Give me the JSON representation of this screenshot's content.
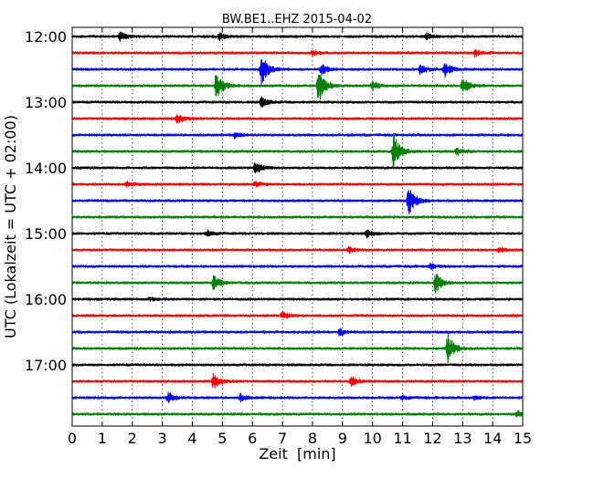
{
  "chart_data": {
    "type": "line",
    "title": "BW.BE1..EHZ 2015-04-02",
    "xlabel": "Zeit  [min]",
    "ylabel": "UTC (Lokalzeit = UTC + 02:00)",
    "xlim": [
      0,
      15
    ],
    "x_ticks": [
      0,
      1,
      2,
      3,
      4,
      5,
      6,
      7,
      8,
      9,
      10,
      11,
      12,
      13,
      14,
      15
    ],
    "y_ticks": [
      {
        "time": "12:00",
        "row": 0
      },
      {
        "time": "13:00",
        "row": 4
      },
      {
        "time": "14:00",
        "row": 8
      },
      {
        "time": "15:00",
        "row": 12
      },
      {
        "time": "16:00",
        "row": 16
      },
      {
        "time": "17:00",
        "row": 20
      }
    ],
    "grid": true,
    "row_interval_minutes": 15,
    "row_colors": [
      "#000000",
      "#ff0000",
      "#0000ff",
      "#008000"
    ],
    "traces": [
      {
        "start": "12:00",
        "events": [
          {
            "t": 1.6,
            "amp": 5
          },
          {
            "t": 4.9,
            "amp": 4
          },
          {
            "t": 11.8,
            "amp": 3
          }
        ]
      },
      {
        "start": "12:15",
        "events": [
          {
            "t": 8.0,
            "amp": 3
          },
          {
            "t": 13.4,
            "amp": 4
          }
        ]
      },
      {
        "start": "12:30",
        "events": [
          {
            "t": 6.3,
            "amp": 18
          },
          {
            "t": 8.3,
            "amp": 6
          },
          {
            "t": 11.6,
            "amp": 6
          },
          {
            "t": 12.4,
            "amp": 9
          }
        ]
      },
      {
        "start": "12:45",
        "events": [
          {
            "t": 4.8,
            "amp": 17
          },
          {
            "t": 8.2,
            "amp": 19
          },
          {
            "t": 10.0,
            "amp": 5
          },
          {
            "t": 13.0,
            "amp": 9
          }
        ]
      },
      {
        "start": "13:00",
        "events": [
          {
            "t": 6.3,
            "amp": 6
          }
        ]
      },
      {
        "start": "13:15",
        "events": [
          {
            "t": 3.5,
            "amp": 5
          }
        ]
      },
      {
        "start": "13:30",
        "events": [
          {
            "t": 5.4,
            "amp": 3
          }
        ]
      },
      {
        "start": "13:45",
        "events": [
          {
            "t": 10.7,
            "amp": 20
          },
          {
            "t": 12.8,
            "amp": 4
          }
        ]
      },
      {
        "start": "14:00",
        "events": [
          {
            "t": 6.1,
            "amp": 7
          }
        ]
      },
      {
        "start": "14:15",
        "events": [
          {
            "t": 1.8,
            "amp": 3
          },
          {
            "t": 6.1,
            "amp": 3
          }
        ]
      },
      {
        "start": "14:30",
        "events": [
          {
            "t": 11.2,
            "amp": 17
          }
        ]
      },
      {
        "start": "14:45",
        "events": []
      },
      {
        "start": "15:00",
        "events": [
          {
            "t": 4.5,
            "amp": 3
          },
          {
            "t": 9.8,
            "amp": 4
          }
        ]
      },
      {
        "start": "15:15",
        "events": [
          {
            "t": 9.2,
            "amp": 3
          },
          {
            "t": 14.2,
            "amp": 3
          }
        ]
      },
      {
        "start": "15:30",
        "events": [
          {
            "t": 11.9,
            "amp": 3
          }
        ]
      },
      {
        "start": "15:45",
        "events": [
          {
            "t": 4.7,
            "amp": 8
          },
          {
            "t": 12.1,
            "amp": 12
          }
        ]
      },
      {
        "start": "16:00",
        "events": [
          {
            "t": 2.6,
            "amp": 2
          }
        ]
      },
      {
        "start": "16:15",
        "events": [
          {
            "t": 7.0,
            "amp": 4
          }
        ]
      },
      {
        "start": "16:30",
        "events": [
          {
            "t": 8.9,
            "amp": 4
          }
        ]
      },
      {
        "start": "16:45",
        "events": [
          {
            "t": 12.5,
            "amp": 17
          }
        ]
      },
      {
        "start": "17:00",
        "events": []
      },
      {
        "start": "17:15",
        "events": [
          {
            "t": 4.7,
            "amp": 8
          },
          {
            "t": 9.3,
            "amp": 5
          }
        ]
      },
      {
        "start": "17:30",
        "events": [
          {
            "t": 3.2,
            "amp": 6
          },
          {
            "t": 5.6,
            "amp": 4
          },
          {
            "t": 11.0,
            "amp": 2
          },
          {
            "t": 13.4,
            "amp": 2
          }
        ]
      },
      {
        "start": "17:45",
        "events": [
          {
            "t": 14.8,
            "amp": 4
          }
        ]
      }
    ]
  }
}
